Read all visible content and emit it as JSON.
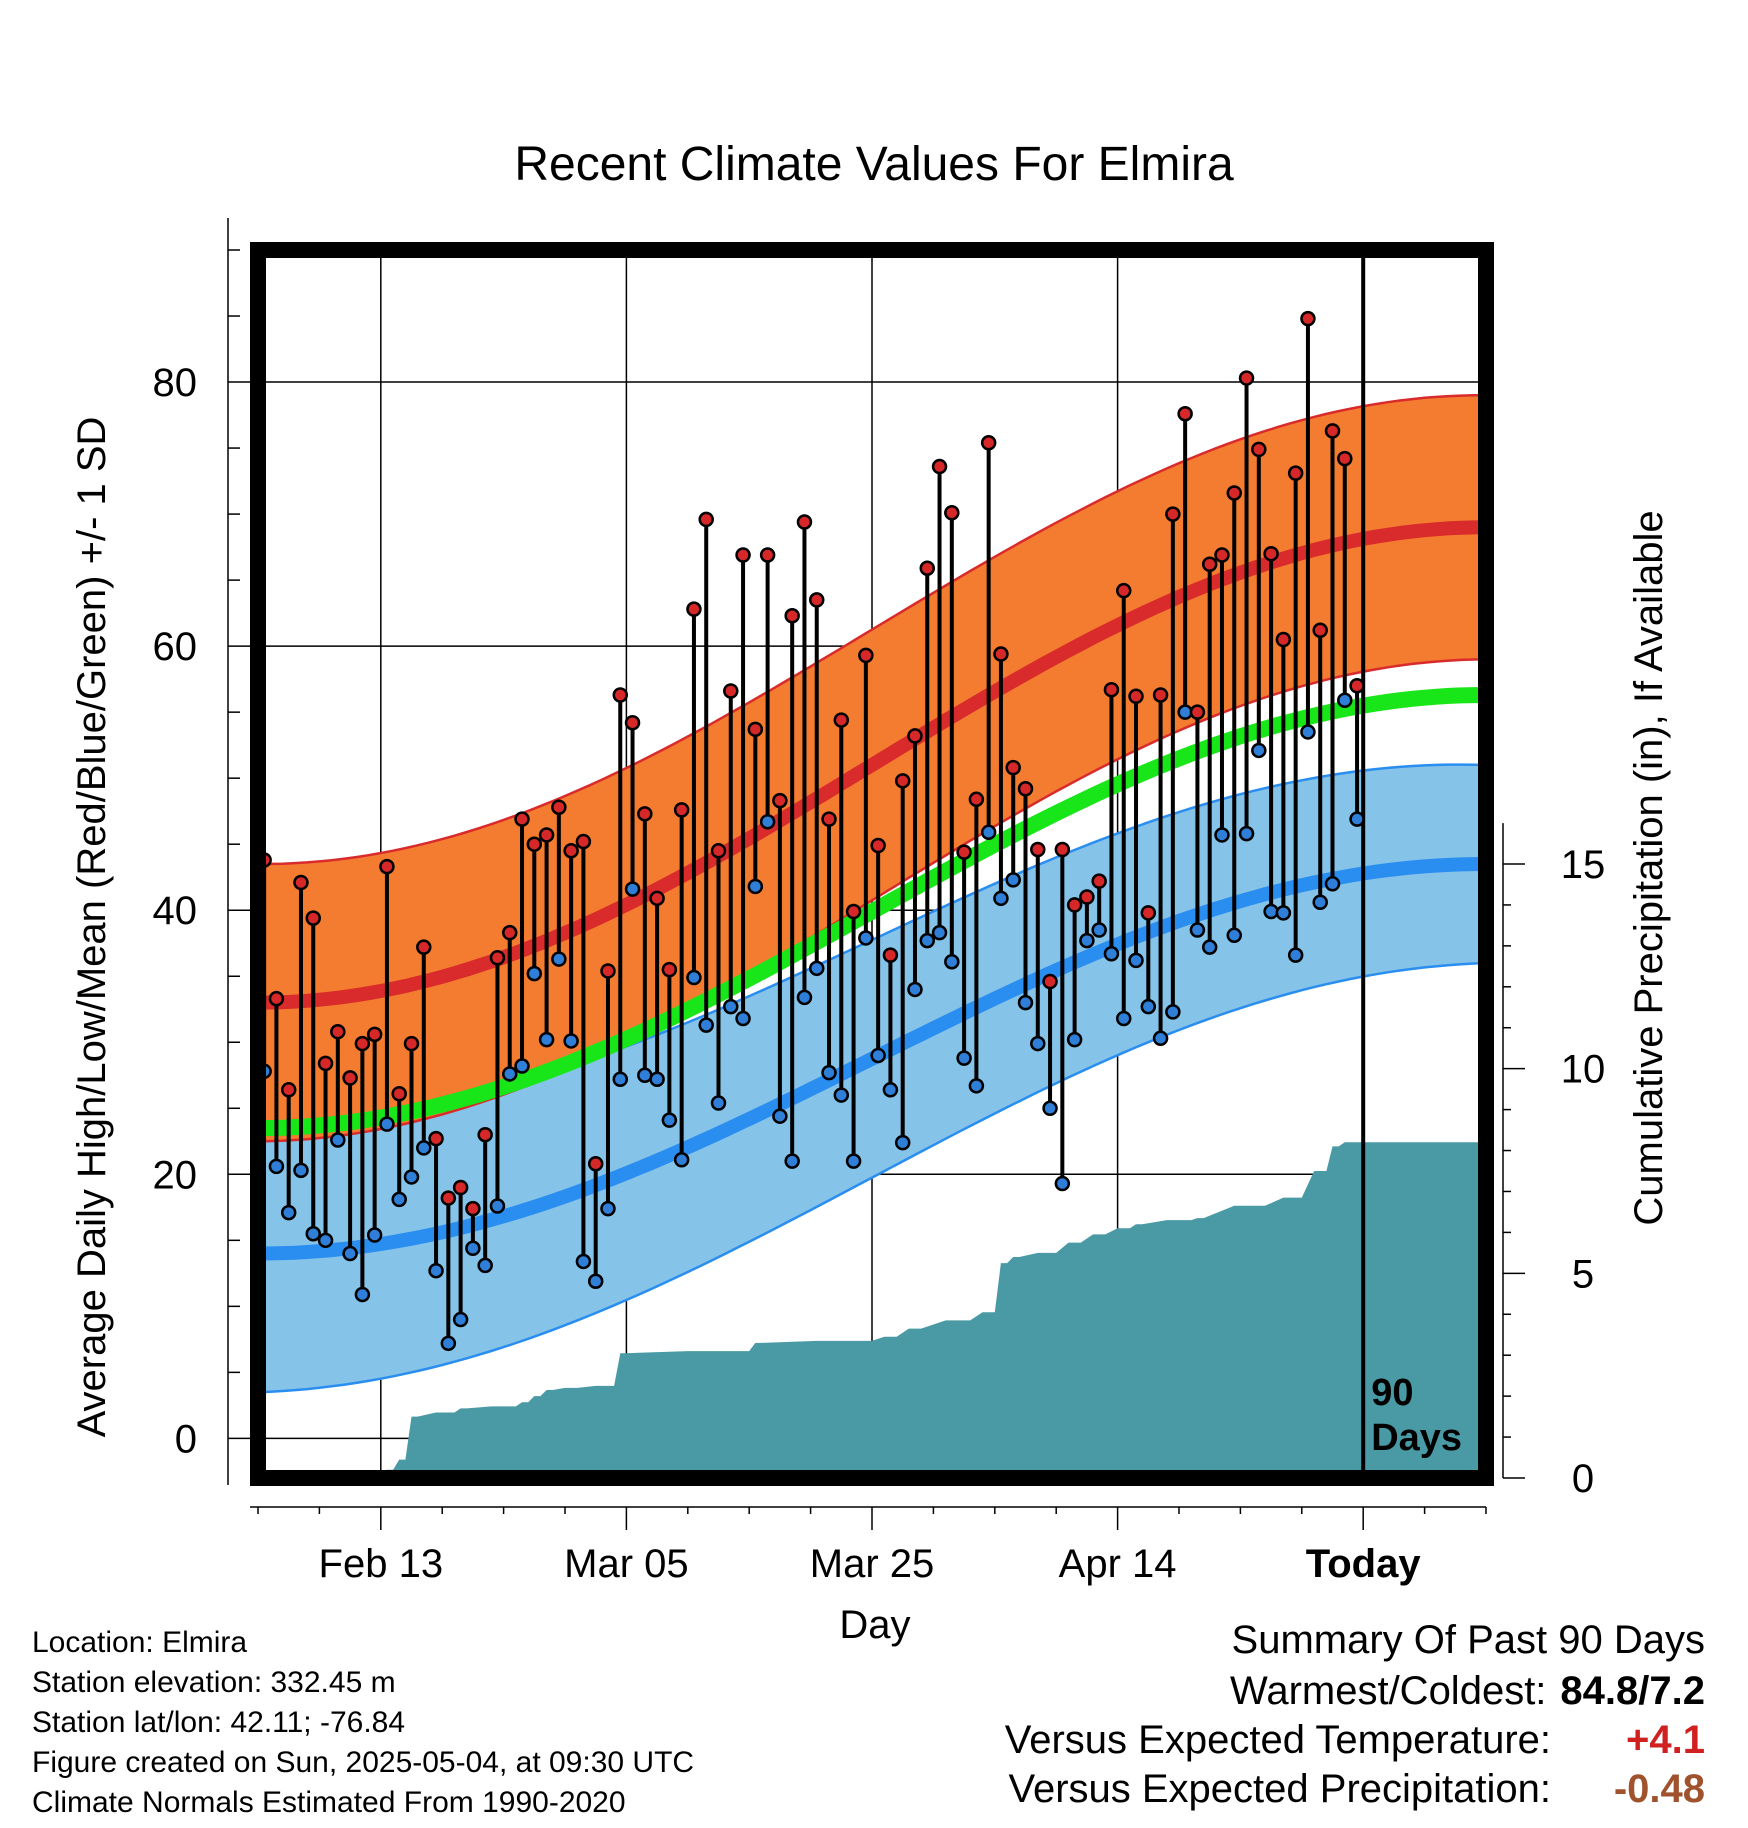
{
  "chart_data": {
    "type": "line",
    "title": "Recent Climate Values For Elmira",
    "xlabel": "Day",
    "ylabel": "Average Daily High/Low/Mean (Red/Blue/Green) +/- 1 SD",
    "y2label": "Cumulative Precipitation (in), If Available",
    "ylim": [
      -3,
      90
    ],
    "y2lim": [
      0,
      30
    ],
    "xlim": [
      0,
      100
    ],
    "x_ticks": [
      {
        "x": 10,
        "label": "Feb 13"
      },
      {
        "x": 30,
        "label": "Mar 05"
      },
      {
        "x": 50,
        "label": "Mar 25"
      },
      {
        "x": 70,
        "label": "Apr 14"
      },
      {
        "x": 90,
        "label": "Today"
      }
    ],
    "y_ticks": [
      0,
      20,
      40,
      60,
      80
    ],
    "y2_ticks": [
      0,
      5,
      10,
      15
    ],
    "annotation": "90\nDays",
    "today_index": 90,
    "grid": true,
    "colors": {
      "high_band": "#f47c30",
      "high_line": "#d92b2b",
      "low_band": "#86c3e8",
      "low_line": "#2a8ef0",
      "mean_line": "#19e619",
      "precip": "#4a9aa5",
      "high_point": "#d62828",
      "low_point": "#2f7fd8"
    },
    "normal_high": {
      "start": 33.0,
      "end": 69.0
    },
    "normal_high_sd": {
      "start": 10.5,
      "end": 10.0
    },
    "normal_low": {
      "start": 14.0,
      "end": 43.5
    },
    "normal_low_sd": {
      "start": 10.5,
      "end": 7.5
    },
    "normal_mean": {
      "start": 23.5,
      "end": 56.3
    },
    "observed": [
      {
        "day": 0,
        "high": 43.8,
        "low": 27.8
      },
      {
        "day": 1,
        "high": 33.3,
        "low": 20.6
      },
      {
        "day": 2,
        "high": 26.4,
        "low": 17.1
      },
      {
        "day": 3,
        "high": 42.1,
        "low": 20.3
      },
      {
        "day": 4,
        "high": 39.4,
        "low": 15.5
      },
      {
        "day": 5,
        "high": 28.4,
        "low": 15.0
      },
      {
        "day": 6,
        "high": 30.8,
        "low": 22.6
      },
      {
        "day": 7,
        "high": 27.3,
        "low": 14.0
      },
      {
        "day": 8,
        "high": 29.9,
        "low": 10.9
      },
      {
        "day": 9,
        "high": 30.6,
        "low": 15.4
      },
      {
        "day": 10,
        "high": 43.3,
        "low": 23.8
      },
      {
        "day": 11,
        "high": 26.1,
        "low": 18.1
      },
      {
        "day": 12,
        "high": 29.9,
        "low": 19.8
      },
      {
        "day": 13,
        "high": 37.2,
        "low": 22.0
      },
      {
        "day": 14,
        "high": 22.7,
        "low": 12.7
      },
      {
        "day": 15,
        "high": 18.2,
        "low": 7.2
      },
      {
        "day": 16,
        "high": 19.0,
        "low": 9.0
      },
      {
        "day": 17,
        "high": 17.4,
        "low": 14.4
      },
      {
        "day": 18,
        "high": 23.0,
        "low": 13.1
      },
      {
        "day": 19,
        "high": 36.4,
        "low": 17.6
      },
      {
        "day": 20,
        "high": 38.3,
        "low": 27.6
      },
      {
        "day": 21,
        "high": 46.9,
        "low": 28.2
      },
      {
        "day": 22,
        "high": 45.0,
        "low": 35.2
      },
      {
        "day": 23,
        "high": 45.7,
        "low": 30.2
      },
      {
        "day": 24,
        "high": 47.8,
        "low": 36.3
      },
      {
        "day": 25,
        "high": 44.5,
        "low": 30.1
      },
      {
        "day": 26,
        "high": 45.2,
        "low": 13.4
      },
      {
        "day": 27,
        "high": 20.8,
        "low": 11.9
      },
      {
        "day": 28,
        "high": 35.4,
        "low": 17.4
      },
      {
        "day": 29,
        "high": 56.3,
        "low": 27.2
      },
      {
        "day": 30,
        "high": 54.2,
        "low": 41.6
      },
      {
        "day": 31,
        "high": 47.3,
        "low": 27.5
      },
      {
        "day": 32,
        "high": 40.9,
        "low": 27.2
      },
      {
        "day": 33,
        "high": 35.5,
        "low": 24.1
      },
      {
        "day": 34,
        "high": 47.6,
        "low": 21.1
      },
      {
        "day": 35,
        "high": 62.8,
        "low": 34.9
      },
      {
        "day": 36,
        "high": 69.6,
        "low": 31.3
      },
      {
        "day": 37,
        "high": 44.5,
        "low": 25.4
      },
      {
        "day": 38,
        "high": 56.6,
        "low": 32.7
      },
      {
        "day": 39,
        "high": 66.9,
        "low": 31.8
      },
      {
        "day": 40,
        "high": 53.7,
        "low": 41.8
      },
      {
        "day": 41,
        "high": 66.9,
        "low": 46.7
      },
      {
        "day": 42,
        "high": 48.3,
        "low": 24.4
      },
      {
        "day": 43,
        "high": 62.3,
        "low": 21.0
      },
      {
        "day": 44,
        "high": 69.4,
        "low": 33.4
      },
      {
        "day": 45,
        "high": 63.5,
        "low": 35.6
      },
      {
        "day": 46,
        "high": 46.9,
        "low": 27.7
      },
      {
        "day": 47,
        "high": 54.4,
        "low": 26.0
      },
      {
        "day": 48,
        "high": 39.9,
        "low": 21.0
      },
      {
        "day": 49,
        "high": 59.3,
        "low": 37.9
      },
      {
        "day": 50,
        "high": 44.9,
        "low": 29.0
      },
      {
        "day": 51,
        "high": 36.6,
        "low": 26.4
      },
      {
        "day": 52,
        "high": 49.8,
        "low": 22.4
      },
      {
        "day": 53,
        "high": 53.2,
        "low": 34.0
      },
      {
        "day": 54,
        "high": 65.9,
        "low": 37.7
      },
      {
        "day": 55,
        "high": 73.6,
        "low": 38.3
      },
      {
        "day": 56,
        "high": 70.1,
        "low": 36.1
      },
      {
        "day": 57,
        "high": 44.4,
        "low": 28.8
      },
      {
        "day": 58,
        "high": 48.4,
        "low": 26.7
      },
      {
        "day": 59,
        "high": 75.4,
        "low": 45.9
      },
      {
        "day": 60,
        "high": 59.4,
        "low": 40.9
      },
      {
        "day": 61,
        "high": 50.8,
        "low": 42.3
      },
      {
        "day": 62,
        "high": 49.2,
        "low": 33.0
      },
      {
        "day": 63,
        "high": 44.6,
        "low": 29.9
      },
      {
        "day": 64,
        "high": 34.6,
        "low": 25.0
      },
      {
        "day": 65,
        "high": 44.6,
        "low": 19.3
      },
      {
        "day": 66,
        "high": 40.4,
        "low": 30.2
      },
      {
        "day": 67,
        "high": 41.0,
        "low": 37.7
      },
      {
        "day": 68,
        "high": 42.2,
        "low": 38.5
      },
      {
        "day": 69,
        "high": 56.7,
        "low": 36.7
      },
      {
        "day": 70,
        "high": 64.2,
        "low": 31.8
      },
      {
        "day": 71,
        "high": 56.2,
        "low": 36.2
      },
      {
        "day": 72,
        "high": 39.8,
        "low": 32.7
      },
      {
        "day": 73,
        "high": 56.3,
        "low": 30.3
      },
      {
        "day": 74,
        "high": 70.0,
        "low": 32.3
      },
      {
        "day": 75,
        "high": 77.6,
        "low": 55.0
      },
      {
        "day": 76,
        "high": 55.0,
        "low": 38.5
      },
      {
        "day": 77,
        "high": 66.2,
        "low": 37.2
      },
      {
        "day": 78,
        "high": 66.9,
        "low": 45.7
      },
      {
        "day": 79,
        "high": 71.6,
        "low": 38.1
      },
      {
        "day": 80,
        "high": 80.3,
        "low": 45.8
      },
      {
        "day": 81,
        "high": 74.9,
        "low": 52.1
      },
      {
        "day": 82,
        "high": 67.0,
        "low": 39.9
      },
      {
        "day": 83,
        "high": 60.5,
        "low": 39.8
      },
      {
        "day": 84,
        "high": 73.1,
        "low": 36.6
      },
      {
        "day": 85,
        "high": 84.8,
        "low": 53.5
      },
      {
        "day": 86,
        "high": 61.2,
        "low": 40.6
      },
      {
        "day": 87,
        "high": 76.3,
        "low": 42.0
      },
      {
        "day": 88,
        "high": 74.2,
        "low": 55.9
      },
      {
        "day": 89,
        "high": 57.0,
        "low": 46.9
      }
    ],
    "precip_cumulative": [
      {
        "day": 0,
        "value": 0.0
      },
      {
        "day": 10,
        "value": 0.1
      },
      {
        "day": 11,
        "value": 0.2
      },
      {
        "day": 12,
        "value": 0.45
      },
      {
        "day": 13,
        "value": 1.5
      },
      {
        "day": 16,
        "value": 1.6
      },
      {
        "day": 17,
        "value": 1.7
      },
      {
        "day": 21,
        "value": 1.75
      },
      {
        "day": 22,
        "value": 1.85
      },
      {
        "day": 23,
        "value": 2.0
      },
      {
        "day": 24,
        "value": 2.15
      },
      {
        "day": 26,
        "value": 2.2
      },
      {
        "day": 29,
        "value": 2.25
      },
      {
        "day": 30,
        "value": 3.05
      },
      {
        "day": 40,
        "value": 3.1
      },
      {
        "day": 41,
        "value": 3.3
      },
      {
        "day": 50,
        "value": 3.35
      },
      {
        "day": 52,
        "value": 3.45
      },
      {
        "day": 54,
        "value": 3.65
      },
      {
        "day": 58,
        "value": 3.85
      },
      {
        "day": 60,
        "value": 4.05
      },
      {
        "day": 61,
        "value": 5.25
      },
      {
        "day": 62,
        "value": 5.4
      },
      {
        "day": 65,
        "value": 5.5
      },
      {
        "day": 67,
        "value": 5.75
      },
      {
        "day": 69,
        "value": 5.95
      },
      {
        "day": 71,
        "value": 6.1
      },
      {
        "day": 72,
        "value": 6.2
      },
      {
        "day": 76,
        "value": 6.3
      },
      {
        "day": 77,
        "value": 6.35
      },
      {
        "day": 82,
        "value": 6.65
      },
      {
        "day": 85,
        "value": 6.85
      },
      {
        "day": 87,
        "value": 7.5
      },
      {
        "day": 88,
        "value": 8.1
      },
      {
        "day": 89,
        "value": 8.2
      },
      {
        "day": 100,
        "value": 8.2
      }
    ]
  },
  "info": {
    "location": "Location: Elmira",
    "elevation": "Station elevation: 332.45 m",
    "latlon": "Station lat/lon: 42.11; -76.84",
    "created": "Figure created on Sun, 2025-05-04, at 09:30 UTC",
    "normals": "Climate Normals Estimated From 1990-2020"
  },
  "summary": {
    "title": "Summary Of Past 90 Days",
    "warmest_coldest_label": "Warmest/Coldest:",
    "warmest_coldest_value": "84.8/7.2",
    "temp_label": "Versus Expected Temperature:",
    "temp_value": "+4.1",
    "temp_color": "#d02020",
    "precip_label": "Versus Expected Precipitation:",
    "precip_value": "-0.48",
    "precip_color": "#a0522d"
  }
}
